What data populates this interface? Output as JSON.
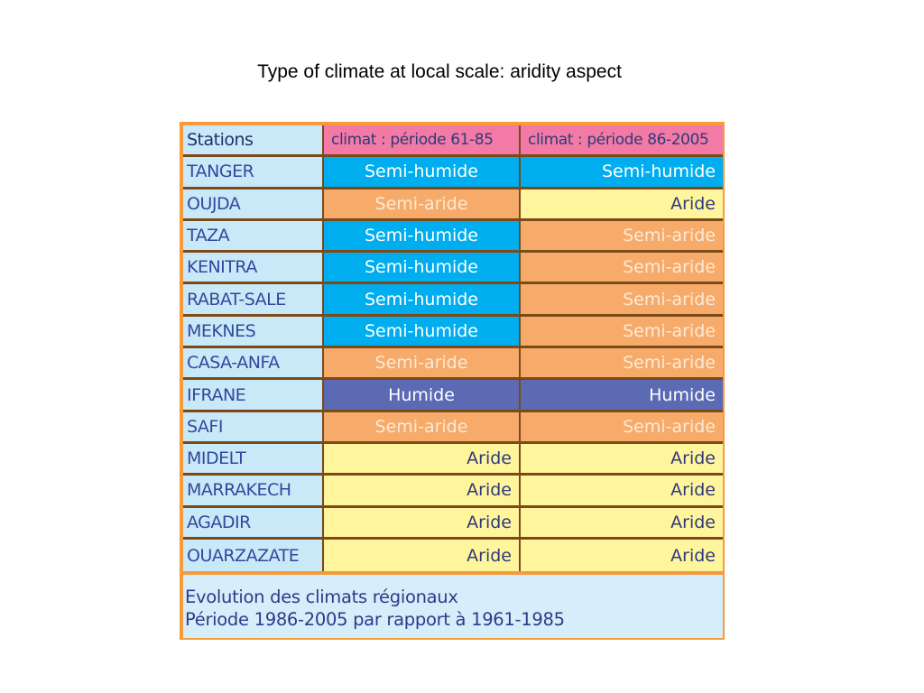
{
  "title": "Type of climate at local scale: aridity aspect",
  "table": {
    "headers": [
      "Stations",
      "climat : période 61-85",
      "climat : période 86-2005"
    ],
    "rows": [
      {
        "station": "TANGER",
        "p1": "Semi-humide",
        "p2": "Semi-humide"
      },
      {
        "station": "OUJDA",
        "p1": "Semi-aride",
        "p2": "Aride"
      },
      {
        "station": "TAZA",
        "p1": "Semi-humide",
        "p2": "Semi-aride"
      },
      {
        "station": "KENITRA",
        "p1": "Semi-humide",
        "p2": "Semi-aride"
      },
      {
        "station": "RABAT-SALE",
        "p1": "Semi-humide",
        "p2": "Semi-aride"
      },
      {
        "station": "MEKNES",
        "p1": "Semi-humide",
        "p2": "Semi-aride"
      },
      {
        "station": "CASA-ANFA",
        "p1": "Semi-aride",
        "p2": "Semi-aride"
      },
      {
        "station": "IFRANE",
        "p1": "Humide",
        "p2": "Humide"
      },
      {
        "station": "SAFI",
        "p1": "Semi-aride",
        "p2": "Semi-aride"
      },
      {
        "station": "MIDELT",
        "p1": "Aride",
        "p2": "Aride"
      },
      {
        "station": "MARRAKECH",
        "p1": "Aride",
        "p2": "Aride"
      },
      {
        "station": "AGADIR",
        "p1": "Aride",
        "p2": "Aride"
      },
      {
        "station": "OUARZAZATE",
        "p1": "Aride",
        "p2": "Aride"
      }
    ]
  },
  "footer": {
    "line1": "Evolution des climats régionaux",
    "line2": "Période 1986-2005 par rapport à 1961-1985"
  },
  "climate_colors": {
    "Semi-humide": {
      "bg": "#00aeef",
      "fg": "#ffffff"
    },
    "Semi-aride": {
      "bg": "#f7ab6a",
      "fg": "#fde9d6"
    },
    "Aride": {
      "bg": "#fff59d",
      "fg": "#2e3a7a"
    },
    "Humide": {
      "bg": "#5b6ab2",
      "fg": "#ffffff"
    }
  }
}
